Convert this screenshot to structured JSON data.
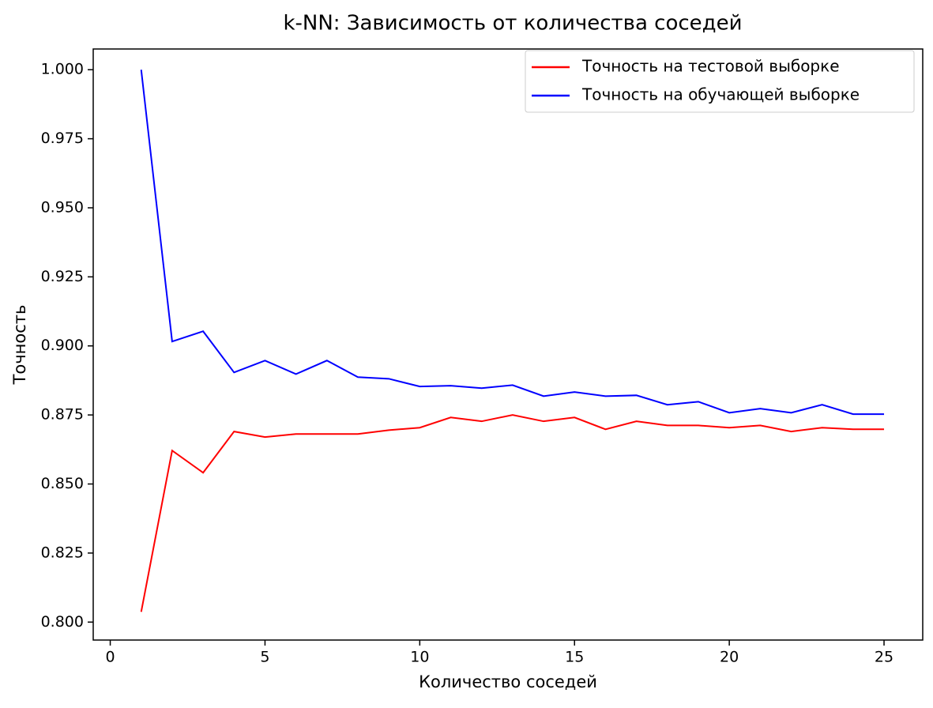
{
  "chart_data": {
    "type": "line",
    "title": "k-NN: Зависимость от количества соседей",
    "x_label": "Количество соседей",
    "y_label": "Точность",
    "x": [
      1,
      2,
      3,
      4,
      5,
      6,
      7,
      8,
      9,
      10,
      11,
      12,
      13,
      14,
      15,
      16,
      17,
      18,
      19,
      20,
      21,
      22,
      23,
      24,
      25
    ],
    "series": [
      {
        "name": "Точность на тестовой выборке",
        "color": "#ff0000",
        "values": [
          0.8037,
          0.8621,
          0.8541,
          0.869,
          0.867,
          0.8681,
          0.8681,
          0.8681,
          0.8695,
          0.8704,
          0.8741,
          0.8727,
          0.875,
          0.8727,
          0.8741,
          0.8698,
          0.8727,
          0.8712,
          0.8712,
          0.8704,
          0.8712,
          0.869,
          0.8704,
          0.8698,
          0.8698
        ]
      },
      {
        "name": "Точность на обучающей выборке",
        "color": "#0000ff",
        "values": [
          1.0,
          0.9016,
          0.9053,
          0.8904,
          0.8947,
          0.8898,
          0.8947,
          0.8887,
          0.8881,
          0.8853,
          0.8856,
          0.8847,
          0.8858,
          0.8818,
          0.8833,
          0.8818,
          0.8821,
          0.8787,
          0.8798,
          0.8758,
          0.8773,
          0.8758,
          0.8787,
          0.8753,
          0.8753
        ]
      }
    ],
    "xlim": [
      -0.55,
      26.25
    ],
    "ylim": [
      0.7935,
      1.0075
    ],
    "xticks": [
      0,
      5,
      10,
      15,
      20,
      25
    ],
    "yticks": [
      {
        "value": 0.8,
        "label": "0.800"
      },
      0.825,
      {
        "value": 0.85,
        "label": "0.850"
      },
      0.875,
      {
        "value": 0.9,
        "label": "0.900"
      },
      0.925,
      {
        "value": 0.95,
        "label": "0.950"
      },
      0.975,
      {
        "value": 1.0,
        "label": "1.000"
      }
    ],
    "grid": false,
    "legend": "upper right"
  }
}
